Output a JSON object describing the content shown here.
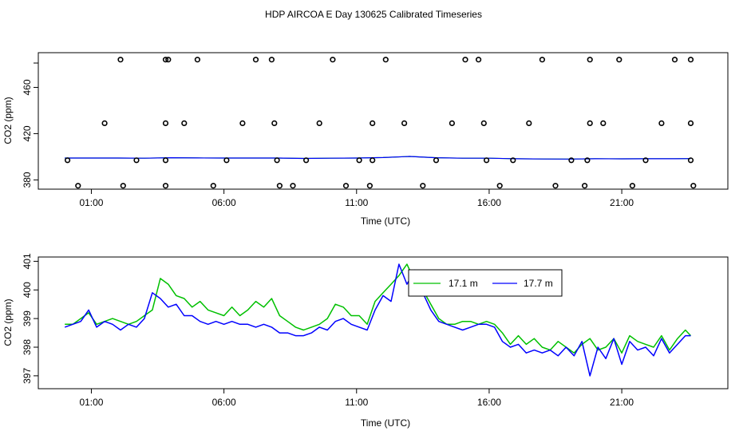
{
  "title": "HDP AIRCOA E  Day 130625  Calibrated Timeseries",
  "colors": {
    "green": "#00c000",
    "blue": "#0000ff",
    "axis": "#000000"
  },
  "chart_data": [
    {
      "type": "scatter",
      "xlabel": "Time (UTC)",
      "ylabel": "CO2 (ppm)",
      "x_ticks": [
        1,
        6,
        11,
        16,
        21
      ],
      "x_tick_labels": [
        "01:00",
        "06:00",
        "11:00",
        "16:00",
        "21:00"
      ],
      "y_ticks": [
        380,
        420,
        460
      ],
      "y_tick_labels": [
        "380",
        "420",
        "460"
      ],
      "xlim": [
        -1.0,
        25.0
      ],
      "ylim": [
        372,
        490
      ],
      "line": {
        "x": [
          -0.0,
          1,
          2,
          3,
          4,
          5,
          6,
          7,
          8,
          9,
          10,
          11,
          12,
          13,
          14,
          15,
          16,
          17,
          18,
          19,
          20,
          21,
          22,
          23,
          23.6
        ],
        "y": [
          398.9,
          398.9,
          398.9,
          398.8,
          399.2,
          399.0,
          398.9,
          398.9,
          398.9,
          398.6,
          398.8,
          398.9,
          399.3,
          400.3,
          399.2,
          398.8,
          398.8,
          398.3,
          398.1,
          398.0,
          398.3,
          398.2,
          398.3,
          398.3,
          398.4
        ]
      },
      "points_x": [
        0.5,
        0.1,
        1.5,
        2.1,
        2.2,
        2.7,
        3.8,
        3.8,
        3.8,
        3.8,
        3.9,
        4.5,
        5.0,
        5.6,
        6.1,
        6.7,
        7.2,
        7.8,
        7.9,
        8.0,
        8.1,
        8.6,
        9.1,
        9.6,
        10.1,
        10.6,
        11.1,
        11.5,
        11.6,
        11.6,
        12.1,
        12.8,
        13.5,
        14.0,
        14.6,
        15.1,
        15.6,
        15.8,
        15.9,
        16.4,
        16.9,
        17.5,
        18.0,
        18.5,
        19.1,
        19.6,
        19.7,
        19.8,
        19.8,
        20.3,
        20.9,
        21.4,
        21.9,
        22.5,
        23.0,
        23.6,
        23.6,
        23.6,
        23.7
      ],
      "points_y": [
        375,
        397,
        429,
        484,
        375,
        397,
        375,
        397,
        429,
        484,
        484,
        429,
        484,
        375,
        397,
        429,
        484,
        484,
        429,
        397,
        375,
        375,
        397,
        429,
        484,
        375,
        397,
        375,
        397,
        429,
        484,
        429,
        375,
        397,
        429,
        484,
        484,
        429,
        397,
        375,
        397,
        429,
        484,
        375,
        397,
        375,
        397,
        429,
        484,
        429,
        484,
        375,
        397,
        429,
        484,
        484,
        429,
        397,
        375
      ]
    },
    {
      "type": "line",
      "xlabel": "Time (UTC)",
      "ylabel": "CO2 (ppm)",
      "x_ticks": [
        1,
        6,
        11,
        16,
        21
      ],
      "x_tick_labels": [
        "01:00",
        "06:00",
        "11:00",
        "16:00",
        "21:00"
      ],
      "y_ticks": [
        397,
        398,
        399,
        400,
        401
      ],
      "y_tick_labels": [
        "397",
        "398",
        "399",
        "400",
        "401"
      ],
      "xlim": [
        -1.0,
        25.0
      ],
      "ylim": [
        396.55,
        401.15
      ],
      "legend_placement": "top-center",
      "series": [
        {
          "name": "17.1 m",
          "color": "#00c000",
          "x": [
            0.0,
            0.3,
            0.6,
            0.9,
            1.2,
            1.5,
            1.8,
            2.1,
            2.4,
            2.7,
            3.0,
            3.3,
            3.6,
            3.9,
            4.2,
            4.5,
            4.8,
            5.1,
            5.4,
            5.7,
            6.0,
            6.3,
            6.6,
            6.9,
            7.2,
            7.5,
            7.8,
            8.1,
            8.4,
            8.7,
            9.0,
            9.3,
            9.6,
            9.9,
            10.2,
            10.5,
            10.8,
            11.1,
            11.4,
            11.7,
            12.0,
            12.3,
            12.6,
            12.9,
            13.2,
            13.5,
            13.8,
            14.1,
            14.4,
            14.7,
            15.0,
            15.3,
            15.6,
            15.9,
            16.2,
            16.5,
            16.8,
            17.1,
            17.4,
            17.7,
            18.0,
            18.3,
            18.6,
            18.9,
            19.2,
            19.5,
            19.8,
            20.1,
            20.4,
            20.7,
            21.0,
            21.3,
            21.6,
            21.9,
            22.2,
            22.5,
            22.8,
            23.1,
            23.4,
            23.6
          ],
          "y": [
            398.8,
            398.8,
            399.0,
            399.2,
            398.8,
            398.9,
            399.0,
            398.9,
            398.8,
            398.9,
            399.1,
            399.3,
            400.4,
            400.2,
            399.8,
            399.7,
            399.4,
            399.6,
            399.3,
            399.2,
            399.1,
            399.4,
            399.1,
            399.3,
            399.6,
            399.4,
            399.7,
            399.1,
            398.9,
            398.7,
            398.6,
            398.7,
            398.8,
            399.0,
            399.5,
            399.4,
            399.1,
            399.1,
            398.8,
            399.6,
            399.9,
            400.2,
            400.5,
            400.9,
            400.3,
            400.0,
            399.5,
            399.0,
            398.8,
            398.8,
            398.9,
            398.9,
            398.8,
            398.9,
            398.8,
            398.5,
            398.1,
            398.4,
            398.1,
            398.3,
            398.0,
            397.9,
            398.2,
            398.0,
            397.8,
            398.1,
            398.3,
            397.9,
            398.0,
            398.3,
            397.8,
            398.4,
            398.2,
            398.1,
            398.0,
            398.4,
            397.9,
            398.3,
            398.6,
            398.4
          ]
        },
        {
          "name": "17.7 m",
          "color": "#0000ff",
          "x": [
            0.0,
            0.3,
            0.6,
            0.9,
            1.2,
            1.5,
            1.8,
            2.1,
            2.4,
            2.7,
            3.0,
            3.3,
            3.6,
            3.9,
            4.2,
            4.5,
            4.8,
            5.1,
            5.4,
            5.7,
            6.0,
            6.3,
            6.6,
            6.9,
            7.2,
            7.5,
            7.8,
            8.1,
            8.4,
            8.7,
            9.0,
            9.3,
            9.6,
            9.9,
            10.2,
            10.5,
            10.8,
            11.1,
            11.4,
            11.7,
            12.0,
            12.3,
            12.6,
            12.9,
            13.2,
            13.5,
            13.8,
            14.1,
            14.4,
            14.7,
            15.0,
            15.3,
            15.6,
            15.9,
            16.2,
            16.5,
            16.8,
            17.1,
            17.4,
            17.7,
            18.0,
            18.3,
            18.6,
            18.9,
            19.2,
            19.5,
            19.8,
            20.1,
            20.4,
            20.7,
            21.0,
            21.3,
            21.6,
            21.9,
            22.2,
            22.5,
            22.8,
            23.1,
            23.4,
            23.6
          ],
          "y": [
            398.7,
            398.8,
            398.9,
            399.3,
            398.7,
            398.9,
            398.8,
            398.6,
            398.8,
            398.7,
            399.0,
            399.9,
            399.7,
            399.4,
            399.5,
            399.1,
            399.1,
            398.9,
            398.8,
            398.9,
            398.8,
            398.9,
            398.8,
            398.8,
            398.7,
            398.8,
            398.7,
            398.5,
            398.5,
            398.4,
            398.4,
            398.5,
            398.7,
            398.6,
            398.9,
            399.0,
            398.8,
            398.7,
            398.6,
            399.3,
            399.8,
            399.6,
            400.9,
            400.2,
            400.7,
            399.9,
            399.3,
            398.9,
            398.8,
            398.7,
            398.6,
            398.7,
            398.8,
            398.8,
            398.7,
            398.2,
            398.0,
            398.1,
            397.8,
            397.9,
            397.8,
            397.9,
            397.7,
            398.0,
            397.7,
            398.2,
            397.0,
            398.0,
            397.6,
            398.3,
            397.4,
            398.2,
            397.9,
            398.0,
            397.7,
            398.3,
            397.8,
            398.1,
            398.4,
            398.4
          ]
        }
      ]
    }
  ]
}
